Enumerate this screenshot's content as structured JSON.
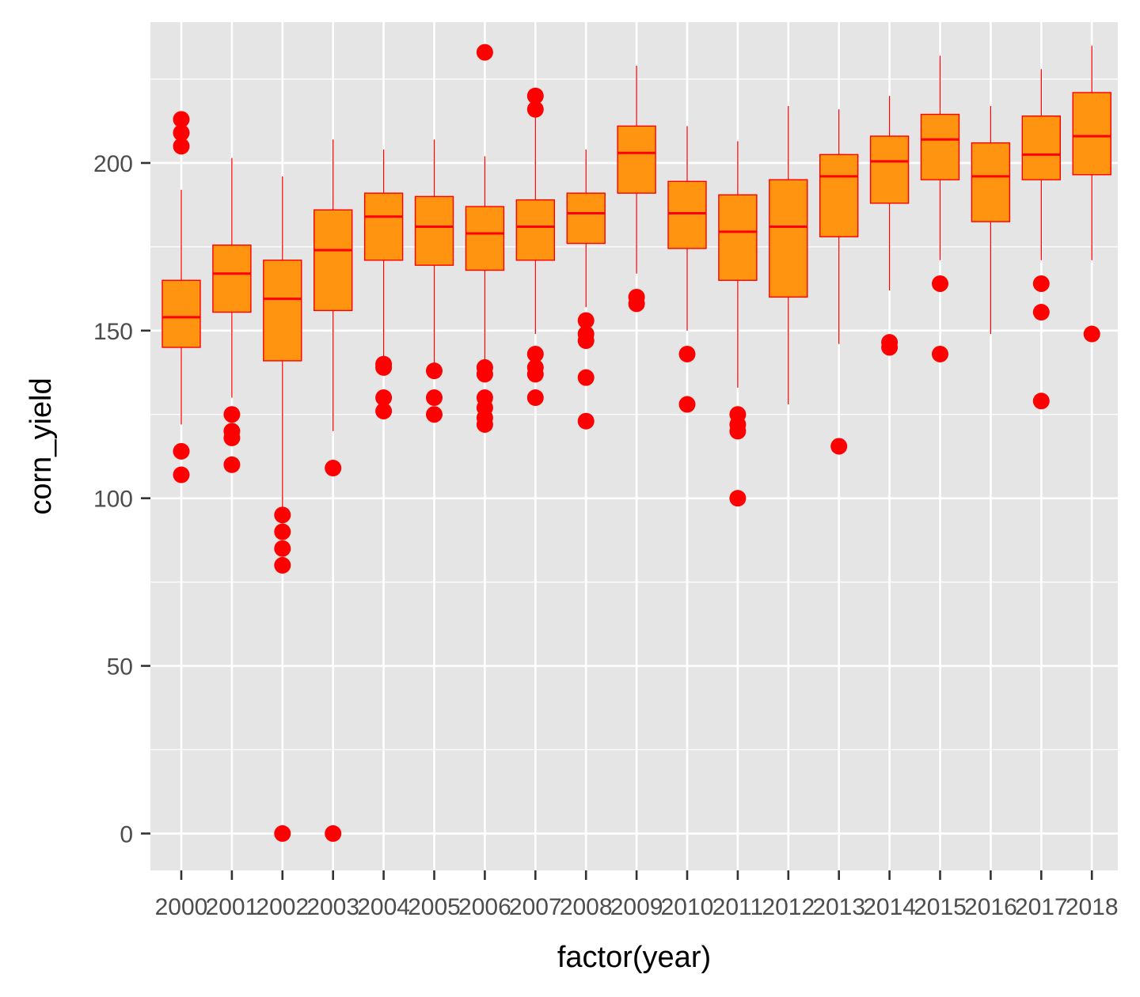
{
  "chart_data": {
    "type": "boxplot",
    "xlabel": "factor(year)",
    "ylabel": "corn_yield",
    "ylim": [
      -11,
      242
    ],
    "y_ticks": [
      0,
      50,
      100,
      150,
      200
    ],
    "grid": true,
    "legend": "none",
    "colors": {
      "panel": "#e5e5e5",
      "grid": "#ffffff",
      "box_fill": "#ff9410",
      "stroke": "#ff0000",
      "outlier": "#ff0000",
      "tick_text": "#4d4d4d",
      "title_text": "#000000"
    },
    "categories": [
      "2000",
      "2001",
      "2002",
      "2003",
      "2004",
      "2005",
      "2006",
      "2007",
      "2008",
      "2009",
      "2010",
      "2011",
      "2012",
      "2013",
      "2014",
      "2015",
      "2016",
      "2017",
      "2018"
    ],
    "boxes": [
      {
        "year": "2000",
        "lower_whisker": 122,
        "q1": 145,
        "median": 154,
        "q3": 165,
        "upper_whisker": 192,
        "outliers": [
          107,
          114,
          205,
          209,
          213
        ]
      },
      {
        "year": "2001",
        "lower_whisker": 130,
        "q1": 155.5,
        "median": 167,
        "q3": 175.5,
        "upper_whisker": 201.5,
        "outliers": [
          110,
          118,
          120,
          125
        ]
      },
      {
        "year": "2002",
        "lower_whisker": 97,
        "q1": 141,
        "median": 159.5,
        "q3": 171,
        "upper_whisker": 196,
        "outliers": [
          0,
          80,
          85,
          90,
          95
        ]
      },
      {
        "year": "2003",
        "lower_whisker": 120,
        "q1": 156,
        "median": 174,
        "q3": 186,
        "upper_whisker": 207,
        "outliers": [
          0,
          109
        ]
      },
      {
        "year": "2004",
        "lower_whisker": 142,
        "q1": 171,
        "median": 184,
        "q3": 191,
        "upper_whisker": 204,
        "outliers": [
          126,
          130,
          139,
          140
        ]
      },
      {
        "year": "2005",
        "lower_whisker": 140,
        "q1": 169.5,
        "median": 181,
        "q3": 190,
        "upper_whisker": 207,
        "outliers": [
          125,
          130,
          138
        ]
      },
      {
        "year": "2006",
        "lower_whisker": 141,
        "q1": 168,
        "median": 179,
        "q3": 187,
        "upper_whisker": 202,
        "outliers": [
          122,
          124,
          127,
          130,
          137,
          139,
          233
        ]
      },
      {
        "year": "2007",
        "lower_whisker": 149,
        "q1": 171,
        "median": 181,
        "q3": 189,
        "upper_whisker": 215,
        "outliers": [
          130,
          137,
          139,
          143,
          216,
          220
        ]
      },
      {
        "year": "2008",
        "lower_whisker": 157,
        "q1": 176,
        "median": 185,
        "q3": 191,
        "upper_whisker": 204,
        "outliers": [
          123,
          136,
          147,
          149,
          153
        ]
      },
      {
        "year": "2009",
        "lower_whisker": 167,
        "q1": 191,
        "median": 203,
        "q3": 211,
        "upper_whisker": 229,
        "outliers": [
          158,
          160
        ]
      },
      {
        "year": "2010",
        "lower_whisker": 150,
        "q1": 174.5,
        "median": 185,
        "q3": 194.5,
        "upper_whisker": 211,
        "outliers": [
          128,
          143
        ]
      },
      {
        "year": "2011",
        "lower_whisker": 133,
        "q1": 165,
        "median": 179.5,
        "q3": 190.5,
        "upper_whisker": 206.5,
        "outliers": [
          100,
          120,
          122,
          125
        ]
      },
      {
        "year": "2012",
        "lower_whisker": 128,
        "q1": 160,
        "median": 181,
        "q3": 195,
        "upper_whisker": 217,
        "outliers": []
      },
      {
        "year": "2013",
        "lower_whisker": 146,
        "q1": 178,
        "median": 196,
        "q3": 202.5,
        "upper_whisker": 216,
        "outliers": [
          115.5
        ]
      },
      {
        "year": "2014",
        "lower_whisker": 162,
        "q1": 188,
        "median": 200.5,
        "q3": 208,
        "upper_whisker": 220,
        "outliers": [
          145,
          146.5
        ]
      },
      {
        "year": "2015",
        "lower_whisker": 171,
        "q1": 195,
        "median": 207,
        "q3": 214.5,
        "upper_whisker": 232,
        "outliers": [
          143,
          164
        ]
      },
      {
        "year": "2016",
        "lower_whisker": 149,
        "q1": 182.5,
        "median": 196,
        "q3": 206,
        "upper_whisker": 217,
        "outliers": []
      },
      {
        "year": "2017",
        "lower_whisker": 171,
        "q1": 195,
        "median": 202.5,
        "q3": 214,
        "upper_whisker": 228,
        "outliers": [
          129,
          155.5,
          164
        ]
      },
      {
        "year": "2018",
        "lower_whisker": 171,
        "q1": 196.5,
        "median": 208,
        "q3": 221,
        "upper_whisker": 235,
        "outliers": [
          149
        ]
      }
    ]
  }
}
